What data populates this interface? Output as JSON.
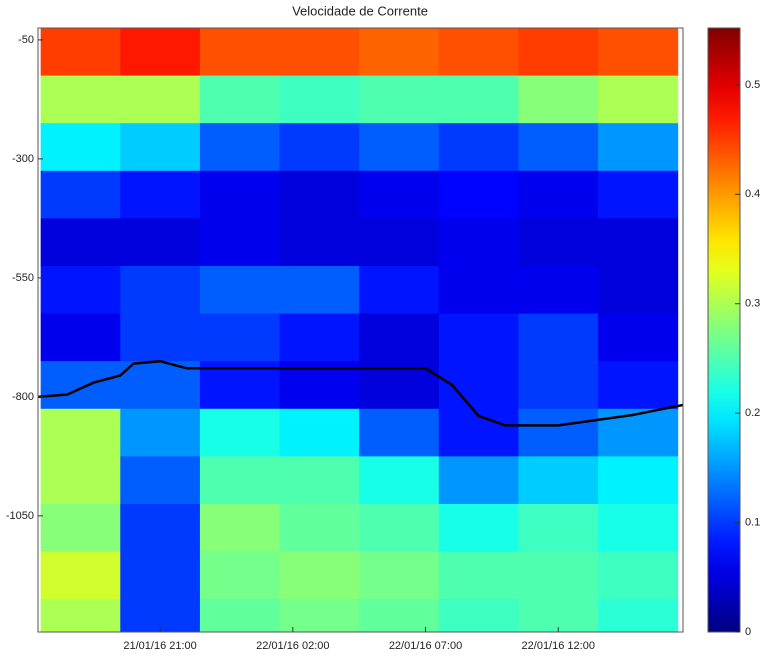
{
  "chart_data": {
    "type": "heatmap",
    "title": "Velocidade de Corrente",
    "x": [
      18,
      21,
      24,
      27,
      30,
      33,
      36,
      39
    ],
    "y": [
      -75,
      -175,
      -275,
      -375,
      -475,
      -575,
      -675,
      -775,
      -875,
      -975,
      -1075,
      -1175,
      -1275
    ],
    "values": [
      [
        0.45,
        0.47,
        0.44,
        0.44,
        0.43,
        0.44,
        0.45,
        0.44
      ],
      [
        0.3,
        0.3,
        0.25,
        0.24,
        0.25,
        0.25,
        0.28,
        0.3
      ],
      [
        0.2,
        0.18,
        0.12,
        0.1,
        0.12,
        0.1,
        0.12,
        0.15
      ],
      [
        0.1,
        0.08,
        0.06,
        0.05,
        0.06,
        0.07,
        0.06,
        0.08
      ],
      [
        0.05,
        0.05,
        0.06,
        0.05,
        0.05,
        0.06,
        0.05,
        0.05
      ],
      [
        0.08,
        0.1,
        0.12,
        0.12,
        0.08,
        0.06,
        0.06,
        0.05
      ],
      [
        0.06,
        0.1,
        0.1,
        0.08,
        0.05,
        0.08,
        0.1,
        0.06
      ],
      [
        0.12,
        0.12,
        0.08,
        0.06,
        0.05,
        0.08,
        0.1,
        0.08
      ],
      [
        0.3,
        0.15,
        0.22,
        0.2,
        0.12,
        0.08,
        0.12,
        0.15
      ],
      [
        0.3,
        0.12,
        0.25,
        0.25,
        0.22,
        0.15,
        0.18,
        0.2
      ],
      [
        0.28,
        0.1,
        0.28,
        0.26,
        0.25,
        0.22,
        0.24,
        0.22
      ],
      [
        0.32,
        0.1,
        0.27,
        0.28,
        0.27,
        0.25,
        0.25,
        0.24
      ],
      [
        0.3,
        0.1,
        0.26,
        0.27,
        0.26,
        0.24,
        0.25,
        0.23
      ]
    ],
    "line": {
      "color": "#000000",
      "x": [
        16.4,
        17.5,
        18.5,
        19.5,
        20,
        21,
        22,
        26,
        31,
        32,
        33,
        34,
        36,
        38.8,
        40.7
      ],
      "y": [
        -800,
        -795,
        -770,
        -755,
        -730,
        -725,
        -740,
        -740,
        -740,
        -775,
        -840,
        -860,
        -860,
        -838,
        -817
      ]
    },
    "xlim": [
      16.4,
      40.7
    ],
    "ylim": [
      -1294,
      -25
    ],
    "xticks": [
      {
        "value": 21,
        "label": "21/01/16 21:00"
      },
      {
        "value": 26,
        "label": "22/01/16 02:00"
      },
      {
        "value": 31,
        "label": "22/01/16 07:00"
      },
      {
        "value": 36,
        "label": "22/01/16 12:00"
      }
    ],
    "yticks": [
      -50,
      -300,
      -550,
      -800,
      -1050
    ],
    "colormap": "jet",
    "clim": [
      0,
      0.552
    ],
    "cticks": [
      0,
      0.1,
      0.2,
      0.3,
      0.4,
      0.5
    ]
  }
}
